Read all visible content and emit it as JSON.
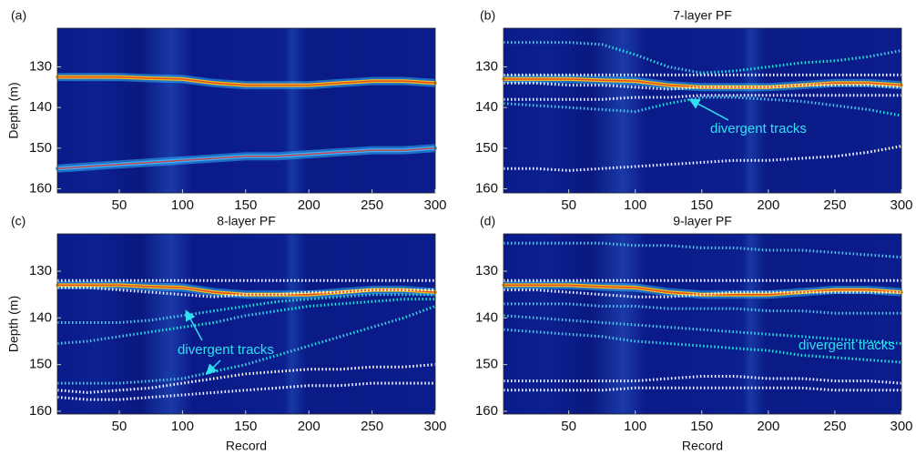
{
  "chart_data": [
    {
      "type": "line",
      "label": "(a)",
      "ylabel": "Depth (m)",
      "xlim": [
        1,
        300
      ],
      "ylim": [
        161,
        120.5
      ],
      "xticks": [
        50,
        100,
        150,
        200,
        250,
        300
      ],
      "yticks": [
        130,
        140,
        150,
        160
      ],
      "x": [
        1,
        25,
        50,
        75,
        100,
        125,
        150,
        175,
        200,
        225,
        250,
        275,
        300
      ],
      "series": [
        {
          "color": "#f0c020",
          "marker": "band",
          "values": [
            132.5,
            132.5,
            132.5,
            132.8,
            133,
            134,
            134.5,
            134.5,
            134.5,
            134,
            133.5,
            133.5,
            134
          ]
        },
        {
          "color": "#40b0ff",
          "marker": "band",
          "values": [
            155,
            154.5,
            154,
            153.5,
            153,
            152.5,
            152,
            152,
            151.5,
            151,
            150.5,
            150.5,
            150
          ]
        }
      ]
    },
    {
      "type": "line",
      "label": "(b)",
      "title": "7-layer PF",
      "annotation": "divergent tracks",
      "xlim": [
        1,
        300
      ],
      "ylim": [
        161,
        120.5
      ],
      "xticks": [
        50,
        100,
        150,
        200,
        250,
        300
      ],
      "yticks": [
        130,
        140,
        150,
        160
      ],
      "x": [
        1,
        25,
        50,
        75,
        100,
        125,
        150,
        175,
        200,
        225,
        250,
        275,
        300
      ],
      "series": [
        {
          "color": "#f0c020",
          "marker": "band",
          "values": [
            133,
            133,
            133,
            133.3,
            133.5,
            134.5,
            135,
            135,
            135,
            134.5,
            134,
            134,
            134.5
          ]
        },
        {
          "color": "#30d8e0",
          "marker": "dot",
          "values": [
            124,
            124,
            124,
            124.5,
            127,
            130,
            131.5,
            131,
            130,
            129,
            128.5,
            127.5,
            126
          ]
        },
        {
          "color": "#ffffff",
          "marker": "dot",
          "values": [
            132,
            132,
            132,
            132,
            132,
            132,
            132,
            132,
            132,
            132,
            132,
            132,
            132
          ]
        },
        {
          "color": "#ffffff",
          "marker": "dot",
          "values": [
            134,
            134,
            134.5,
            134.5,
            135,
            135.5,
            135,
            135,
            135,
            134.5,
            134.5,
            134.5,
            135
          ]
        },
        {
          "color": "#ffffff",
          "marker": "dot",
          "values": [
            138,
            138,
            138,
            138,
            137.5,
            137.5,
            137,
            137,
            137,
            137,
            137,
            137,
            137
          ]
        },
        {
          "color": "#30d8e0",
          "marker": "dot",
          "values": [
            139,
            139.5,
            140,
            140.5,
            141,
            139,
            137.5,
            137.5,
            138,
            138.5,
            139.5,
            140.5,
            142
          ]
        },
        {
          "color": "#ffffff",
          "marker": "dot",
          "values": [
            155,
            155,
            155.5,
            155,
            154.5,
            154,
            153.5,
            153,
            153,
            152.5,
            152,
            151,
            149.5
          ]
        }
      ]
    },
    {
      "type": "line",
      "label": "(c)",
      "title": "8-layer PF",
      "annotation": "divergent tracks",
      "xlabel": "Record",
      "ylabel": "Depth (m)",
      "xlim": [
        1,
        300
      ],
      "ylim": [
        160.6,
        122
      ],
      "xticks": [
        50,
        100,
        150,
        200,
        250,
        300
      ],
      "yticks": [
        130,
        140,
        150,
        160
      ],
      "x": [
        1,
        25,
        50,
        75,
        100,
        125,
        150,
        175,
        200,
        225,
        250,
        275,
        300
      ],
      "series": [
        {
          "color": "#f0c020",
          "marker": "band",
          "values": [
            133,
            133,
            133,
            133.3,
            133.5,
            134.5,
            135,
            135,
            135,
            134.5,
            134,
            134,
            134.5
          ]
        },
        {
          "color": "#ffffff",
          "marker": "dot",
          "values": [
            132,
            132,
            132,
            132,
            132,
            132,
            132,
            132,
            132,
            132,
            132,
            132,
            132
          ]
        },
        {
          "color": "#ffffff",
          "marker": "dot",
          "values": [
            133.5,
            133.5,
            134,
            134.5,
            135,
            135.5,
            135,
            135,
            134.5,
            134.5,
            134,
            134,
            134
          ]
        },
        {
          "color": "#30d8e0",
          "marker": "dot",
          "values": [
            141,
            141,
            141,
            140.5,
            139.5,
            138.5,
            137.5,
            136.5,
            136,
            135.5,
            135,
            135,
            135
          ]
        },
        {
          "color": "#30d8e0",
          "marker": "dot",
          "values": [
            145.5,
            145,
            144,
            143,
            142,
            141,
            139.5,
            138.5,
            137.5,
            137,
            136.5,
            136,
            136
          ]
        },
        {
          "color": "#30d8e0",
          "marker": "dot",
          "values": [
            154,
            154,
            154,
            153.5,
            153,
            151.5,
            150,
            148,
            146,
            144,
            142,
            140,
            137.5
          ]
        },
        {
          "color": "#ffffff",
          "marker": "dot",
          "values": [
            155.5,
            156,
            155.5,
            155,
            154,
            153,
            152,
            151.5,
            151,
            151,
            150.5,
            150.5,
            150
          ]
        },
        {
          "color": "#ffffff",
          "marker": "dot",
          "values": [
            157,
            157.5,
            157.5,
            157,
            156.5,
            156,
            155.5,
            155,
            154.5,
            154.5,
            154,
            154,
            154
          ]
        }
      ]
    },
    {
      "type": "line",
      "label": "(d)",
      "title": "9-layer PF",
      "annotation": "divergent tracks",
      "xlabel": "Record",
      "xlim": [
        1,
        300
      ],
      "ylim": [
        160.6,
        122
      ],
      "xticks": [
        50,
        100,
        150,
        200,
        250,
        300
      ],
      "yticks": [
        130,
        140,
        150,
        160
      ],
      "x": [
        1,
        25,
        50,
        75,
        100,
        125,
        150,
        175,
        200,
        225,
        250,
        275,
        300
      ],
      "series": [
        {
          "color": "#f0c020",
          "marker": "band",
          "values": [
            133,
            133,
            133,
            133.3,
            133.5,
            134.5,
            135,
            135,
            135,
            134.5,
            134,
            134,
            134.5
          ]
        },
        {
          "color": "#30d8e0",
          "marker": "dot",
          "values": [
            124,
            124,
            124,
            124,
            124.5,
            124.5,
            125,
            125,
            125.5,
            125.5,
            126,
            126.5,
            127
          ]
        },
        {
          "color": "#ffffff",
          "marker": "dot",
          "values": [
            132,
            132,
            132,
            132,
            132,
            132,
            132,
            132,
            132,
            132,
            132,
            132,
            132
          ]
        },
        {
          "color": "#ffffff",
          "marker": "dot",
          "values": [
            134,
            134,
            134.5,
            135,
            135.5,
            135.5,
            135,
            134.5,
            134.5,
            134.5,
            134.5,
            134.5,
            134.5
          ]
        },
        {
          "color": "#30d8e0",
          "marker": "dot",
          "values": [
            137,
            137,
            137,
            137.5,
            137.5,
            138,
            138,
            138,
            138.5,
            138.5,
            139,
            139,
            139
          ]
        },
        {
          "color": "#30d8e0",
          "marker": "dot",
          "values": [
            139.5,
            140,
            140.5,
            141,
            141.5,
            142,
            142.5,
            143,
            143.5,
            144,
            144.5,
            145,
            145.5
          ]
        },
        {
          "color": "#30d8e0",
          "marker": "dot",
          "values": [
            142.5,
            143,
            143.5,
            144,
            145,
            145.5,
            146,
            146.5,
            147,
            148,
            148.5,
            149,
            149.5
          ]
        },
        {
          "color": "#ffffff",
          "marker": "dot",
          "values": [
            153.5,
            153.5,
            153.5,
            153.5,
            153.5,
            153,
            152.5,
            152.5,
            153,
            153,
            153.5,
            153.5,
            154
          ]
        },
        {
          "color": "#ffffff",
          "marker": "dot",
          "values": [
            155.5,
            155.5,
            155.5,
            155.5,
            155,
            155,
            155,
            155,
            155,
            155,
            155.5,
            155.5,
            155.5
          ]
        }
      ]
    }
  ]
}
